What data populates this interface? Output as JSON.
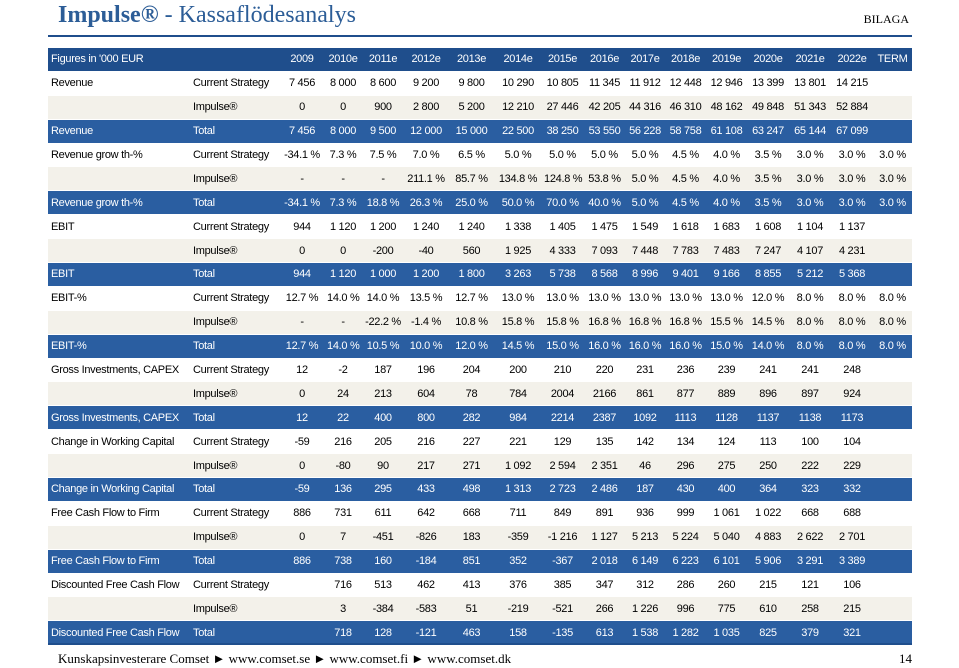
{
  "header": {
    "title_main": "Impulse®",
    "title_sep": " - ",
    "title_sub": "Kassaflödesanalys",
    "tag": "BILAGA"
  },
  "table": {
    "columns": [
      "Figures in '000 EUR",
      "",
      "2009",
      "2010e",
      "2011e",
      "2012e",
      "2013e",
      "2014e",
      "2015e",
      "2016e",
      "2017e",
      "2018e",
      "2019e",
      "2020e",
      "2021e",
      "2022e",
      "TERM"
    ],
    "rows": [
      {
        "style": "light",
        "label": "Revenue",
        "sub": "Current Strategy",
        "values": [
          "7 456",
          "8 000",
          "8 600",
          "9 200",
          "9 800",
          "10 290",
          "10 805",
          "11 345",
          "11 912",
          "12 448",
          "12 946",
          "13 399",
          "13 801",
          "14 215",
          ""
        ]
      },
      {
        "style": "alt",
        "label": "",
        "sub": "Impulse®",
        "values": [
          "0",
          "0",
          "900",
          "2 800",
          "5 200",
          "12 210",
          "27 446",
          "42 205",
          "44 316",
          "46 310",
          "48 162",
          "49 848",
          "51 343",
          "52 884",
          ""
        ]
      },
      {
        "style": "dark",
        "label": "Revenue",
        "sub": "Total",
        "values": [
          "7 456",
          "8 000",
          "9 500",
          "12 000",
          "15 000",
          "22 500",
          "38 250",
          "53 550",
          "56 228",
          "58 758",
          "61 108",
          "63 247",
          "65 144",
          "67 099",
          ""
        ]
      },
      {
        "style": "light",
        "label": "Revenue grow th-%",
        "sub": "Current Strategy",
        "values": [
          "-34.1 %",
          "7.3 %",
          "7.5 %",
          "7.0 %",
          "6.5 %",
          "5.0 %",
          "5.0 %",
          "5.0 %",
          "5.0 %",
          "4.5 %",
          "4.0 %",
          "3.5 %",
          "3.0 %",
          "3.0 %",
          "3.0 %"
        ]
      },
      {
        "style": "alt",
        "label": "",
        "sub": "Impulse®",
        "values": [
          "-",
          "-",
          "-",
          "211.1 %",
          "85.7 %",
          "134.8 %",
          "124.8 %",
          "53.8 %",
          "5.0 %",
          "4.5 %",
          "4.0 %",
          "3.5 %",
          "3.0 %",
          "3.0 %",
          "3.0 %"
        ]
      },
      {
        "style": "dark",
        "label": "Revenue grow th-%",
        "sub": "Total",
        "values": [
          "-34.1 %",
          "7.3 %",
          "18.8 %",
          "26.3 %",
          "25.0 %",
          "50.0 %",
          "70.0 %",
          "40.0 %",
          "5.0 %",
          "4.5 %",
          "4.0 %",
          "3.5 %",
          "3.0 %",
          "3.0 %",
          "3.0 %"
        ]
      },
      {
        "style": "light",
        "label": "EBIT",
        "sub": "Current Strategy",
        "values": [
          "944",
          "1 120",
          "1 200",
          "1 240",
          "1 240",
          "1 338",
          "1 405",
          "1 475",
          "1 549",
          "1 618",
          "1 683",
          "1 608",
          "1 104",
          "1 137",
          ""
        ]
      },
      {
        "style": "alt",
        "label": "",
        "sub": "Impulse®",
        "values": [
          "0",
          "0",
          "-200",
          "-40",
          "560",
          "1 925",
          "4 333",
          "7 093",
          "7 448",
          "7 783",
          "7 483",
          "7 247",
          "4 107",
          "4 231",
          ""
        ]
      },
      {
        "style": "dark",
        "label": "EBIT",
        "sub": "Total",
        "values": [
          "944",
          "1 120",
          "1 000",
          "1 200",
          "1 800",
          "3 263",
          "5 738",
          "8 568",
          "8 996",
          "9 401",
          "9 166",
          "8 855",
          "5 212",
          "5 368",
          ""
        ]
      },
      {
        "style": "light",
        "label": "EBIT-%",
        "sub": "Current Strategy",
        "values": [
          "12.7 %",
          "14.0 %",
          "14.0 %",
          "13.5 %",
          "12.7 %",
          "13.0 %",
          "13.0 %",
          "13.0 %",
          "13.0 %",
          "13.0 %",
          "13.0 %",
          "12.0 %",
          "8.0 %",
          "8.0 %",
          "8.0 %"
        ]
      },
      {
        "style": "alt",
        "label": "",
        "sub": "Impulse®",
        "values": [
          "-",
          "-",
          "-22.2 %",
          "-1.4 %",
          "10.8 %",
          "15.8 %",
          "15.8 %",
          "16.8 %",
          "16.8 %",
          "16.8 %",
          "15.5 %",
          "14.5 %",
          "8.0 %",
          "8.0 %",
          "8.0 %"
        ]
      },
      {
        "style": "dark",
        "label": "EBIT-%",
        "sub": "Total",
        "values": [
          "12.7 %",
          "14.0 %",
          "10.5 %",
          "10.0 %",
          "12.0 %",
          "14.5 %",
          "15.0 %",
          "16.0 %",
          "16.0 %",
          "16.0 %",
          "15.0 %",
          "14.0 %",
          "8.0 %",
          "8.0 %",
          "8.0 %"
        ]
      },
      {
        "style": "light",
        "label": "Gross Investments, CAPEX",
        "sub": "Current Strategy",
        "values": [
          "12",
          "-2",
          "187",
          "196",
          "204",
          "200",
          "210",
          "220",
          "231",
          "236",
          "239",
          "241",
          "241",
          "248",
          ""
        ]
      },
      {
        "style": "alt",
        "label": "",
        "sub": "Impulse®",
        "values": [
          "0",
          "24",
          "213",
          "604",
          "78",
          "784",
          "2004",
          "2166",
          "861",
          "877",
          "889",
          "896",
          "897",
          "924",
          ""
        ]
      },
      {
        "style": "dark",
        "label": "Gross Investments, CAPEX",
        "sub": "Total",
        "values": [
          "12",
          "22",
          "400",
          "800",
          "282",
          "984",
          "2214",
          "2387",
          "1092",
          "1113",
          "1128",
          "1137",
          "1138",
          "1173",
          ""
        ]
      },
      {
        "style": "light",
        "label": "Change in Working Capital",
        "sub": "Current Strategy",
        "values": [
          "-59",
          "216",
          "205",
          "216",
          "227",
          "221",
          "129",
          "135",
          "142",
          "134",
          "124",
          "113",
          "100",
          "104",
          ""
        ]
      },
      {
        "style": "alt",
        "label": "",
        "sub": "Impulse®",
        "values": [
          "0",
          "-80",
          "90",
          "217",
          "271",
          "1 092",
          "2 594",
          "2 351",
          "46",
          "296",
          "275",
          "250",
          "222",
          "229",
          ""
        ]
      },
      {
        "style": "dark",
        "label": "Change in Working Capital",
        "sub": "Total",
        "values": [
          "-59",
          "136",
          "295",
          "433",
          "498",
          "1 313",
          "2 723",
          "2 486",
          "187",
          "430",
          "400",
          "364",
          "323",
          "332",
          ""
        ]
      },
      {
        "style": "light",
        "label": "Free Cash Flow to Firm",
        "sub": "Current Strategy",
        "values": [
          "886",
          "731",
          "611",
          "642",
          "668",
          "711",
          "849",
          "891",
          "936",
          "999",
          "1 061",
          "1 022",
          "668",
          "688",
          ""
        ]
      },
      {
        "style": "alt",
        "label": "",
        "sub": "Impulse®",
        "values": [
          "0",
          "7",
          "-451",
          "-826",
          "183",
          "-359",
          "-1 216",
          "1 127",
          "5 213",
          "5 224",
          "5 040",
          "4 883",
          "2 622",
          "2 701",
          ""
        ]
      },
      {
        "style": "dark",
        "label": "Free Cash Flow to Firm",
        "sub": "Total",
        "values": [
          "886",
          "738",
          "160",
          "-184",
          "851",
          "352",
          "-367",
          "2 018",
          "6 149",
          "6 223",
          "6 101",
          "5 906",
          "3 291",
          "3 389",
          ""
        ]
      },
      {
        "style": "light",
        "label": "Discounted Free Cash Flow",
        "sub": "Current Strategy",
        "values": [
          "",
          "716",
          "513",
          "462",
          "413",
          "376",
          "385",
          "347",
          "312",
          "286",
          "260",
          "215",
          "121",
          "106",
          ""
        ]
      },
      {
        "style": "alt",
        "label": "",
        "sub": "Impulse®",
        "values": [
          "",
          "3",
          "-384",
          "-583",
          "51",
          "-219",
          "-521",
          "266",
          "1 226",
          "996",
          "775",
          "610",
          "258",
          "215",
          ""
        ]
      },
      {
        "style": "dark",
        "label": "Discounted Free Cash Flow",
        "sub": "Total",
        "values": [
          "",
          "718",
          "128",
          "-121",
          "463",
          "158",
          "-135",
          "613",
          "1 538",
          "1 282",
          "1 035",
          "825",
          "379",
          "321",
          ""
        ]
      }
    ]
  },
  "footer": {
    "left": "Kunskapsinvesterare Comset ► www.comset.se ► www.comset.fi ► www.comset.dk",
    "page": "14"
  }
}
